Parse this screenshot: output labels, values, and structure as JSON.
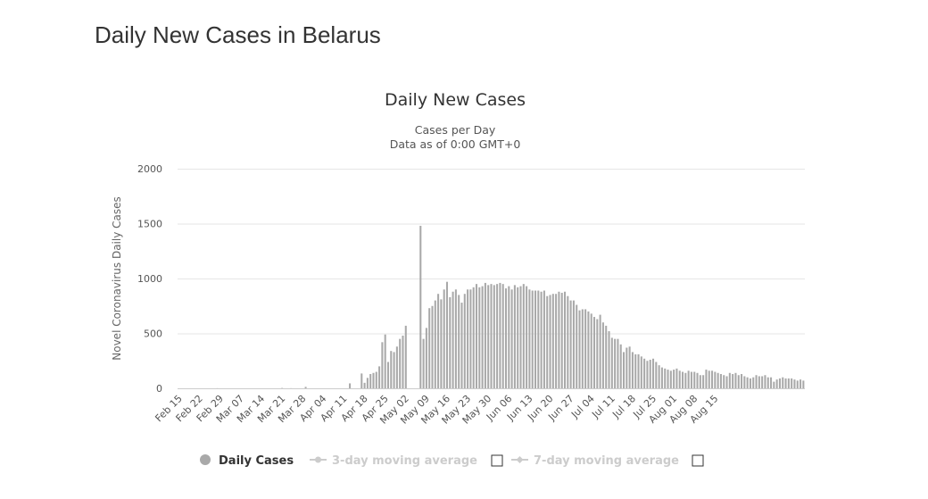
{
  "page": {
    "heading": "Daily New Cases in Belarus"
  },
  "colors": {
    "bar": "#a9a9a9",
    "legend_active": "#333333",
    "legend_inactive": "#cccccc",
    "grid": "#e6e6e6"
  },
  "chart_data": {
    "type": "bar",
    "title": "Daily New Cases",
    "subtitle_1": "Cases per Day",
    "subtitle_2": "Data as of 0:00 GMT+0",
    "ylabel": "Novel Coronavirus Daily Cases",
    "xlabel": "",
    "ylim": [
      0,
      2000
    ],
    "yticks": [
      0,
      500,
      1000,
      1500,
      2000
    ],
    "grid": true,
    "legend_placement": "bottom-center",
    "start_date": "Feb 15",
    "x_tick_labels": [
      "Feb 15",
      "Feb 22",
      "Feb 29",
      "Mar 07",
      "Mar 14",
      "Mar 21",
      "Mar 28",
      "Apr 04",
      "Apr 11",
      "Apr 18",
      "Apr 25",
      "May 02",
      "May 09",
      "May 16",
      "May 23",
      "May 30",
      "Jun 06",
      "Jun 13",
      "Jun 20",
      "Jun 27",
      "Jul 04",
      "Jul 11",
      "Jul 18",
      "Jul 25",
      "Aug 01",
      "Aug 08",
      "Aug 15"
    ],
    "series": [
      {
        "name": "Daily Cases",
        "values": [
          0,
          0,
          0,
          0,
          0,
          0,
          0,
          0,
          0,
          0,
          0,
          0,
          0,
          1,
          0,
          0,
          0,
          0,
          0,
          0,
          0,
          0,
          0,
          0,
          0,
          0,
          0,
          0,
          0,
          0,
          0,
          0,
          0,
          0,
          0,
          3,
          0,
          0,
          1,
          0,
          0,
          0,
          0,
          13,
          0,
          0,
          0,
          0,
          0,
          0,
          0,
          0,
          0,
          0,
          0,
          0,
          0,
          0,
          45,
          0,
          0,
          0,
          135,
          50,
          95,
          130,
          140,
          150,
          200,
          420,
          490,
          240,
          340,
          330,
          380,
          450,
          480,
          570,
          0,
          0,
          0,
          0,
          1480,
          450,
          550,
          730,
          750,
          800,
          860,
          810,
          900,
          970,
          830,
          880,
          900,
          850,
          780,
          860,
          900,
          900,
          920,
          950,
          920,
          930,
          960,
          940,
          950,
          940,
          950,
          960,
          950,
          910,
          930,
          900,
          940,
          920,
          930,
          950,
          930,
          900,
          890,
          890,
          890,
          880,
          890,
          840,
          850,
          860,
          860,
          880,
          870,
          880,
          840,
          800,
          800,
          760,
          710,
          720,
          720,
          700,
          680,
          650,
          630,
          670,
          600,
          570,
          520,
          460,
          450,
          450,
          400,
          330,
          370,
          380,
          330,
          310,
          310,
          290,
          270,
          250,
          260,
          270,
          240,
          210,
          190,
          180,
          170,
          160,
          170,
          180,
          160,
          150,
          140,
          160,
          150,
          150,
          140,
          120,
          120,
          170,
          160,
          160,
          150,
          140,
          130,
          120,
          110,
          140,
          130,
          140,
          120,
          130,
          110,
          100,
          90,
          100,
          120,
          110,
          110,
          120,
          100,
          100,
          60,
          80,
          90,
          100,
          90,
          90,
          90,
          80,
          70,
          80,
          70
        ]
      },
      {
        "name": "3-day moving average",
        "values": []
      },
      {
        "name": "7-day moving average",
        "values": []
      }
    ]
  }
}
